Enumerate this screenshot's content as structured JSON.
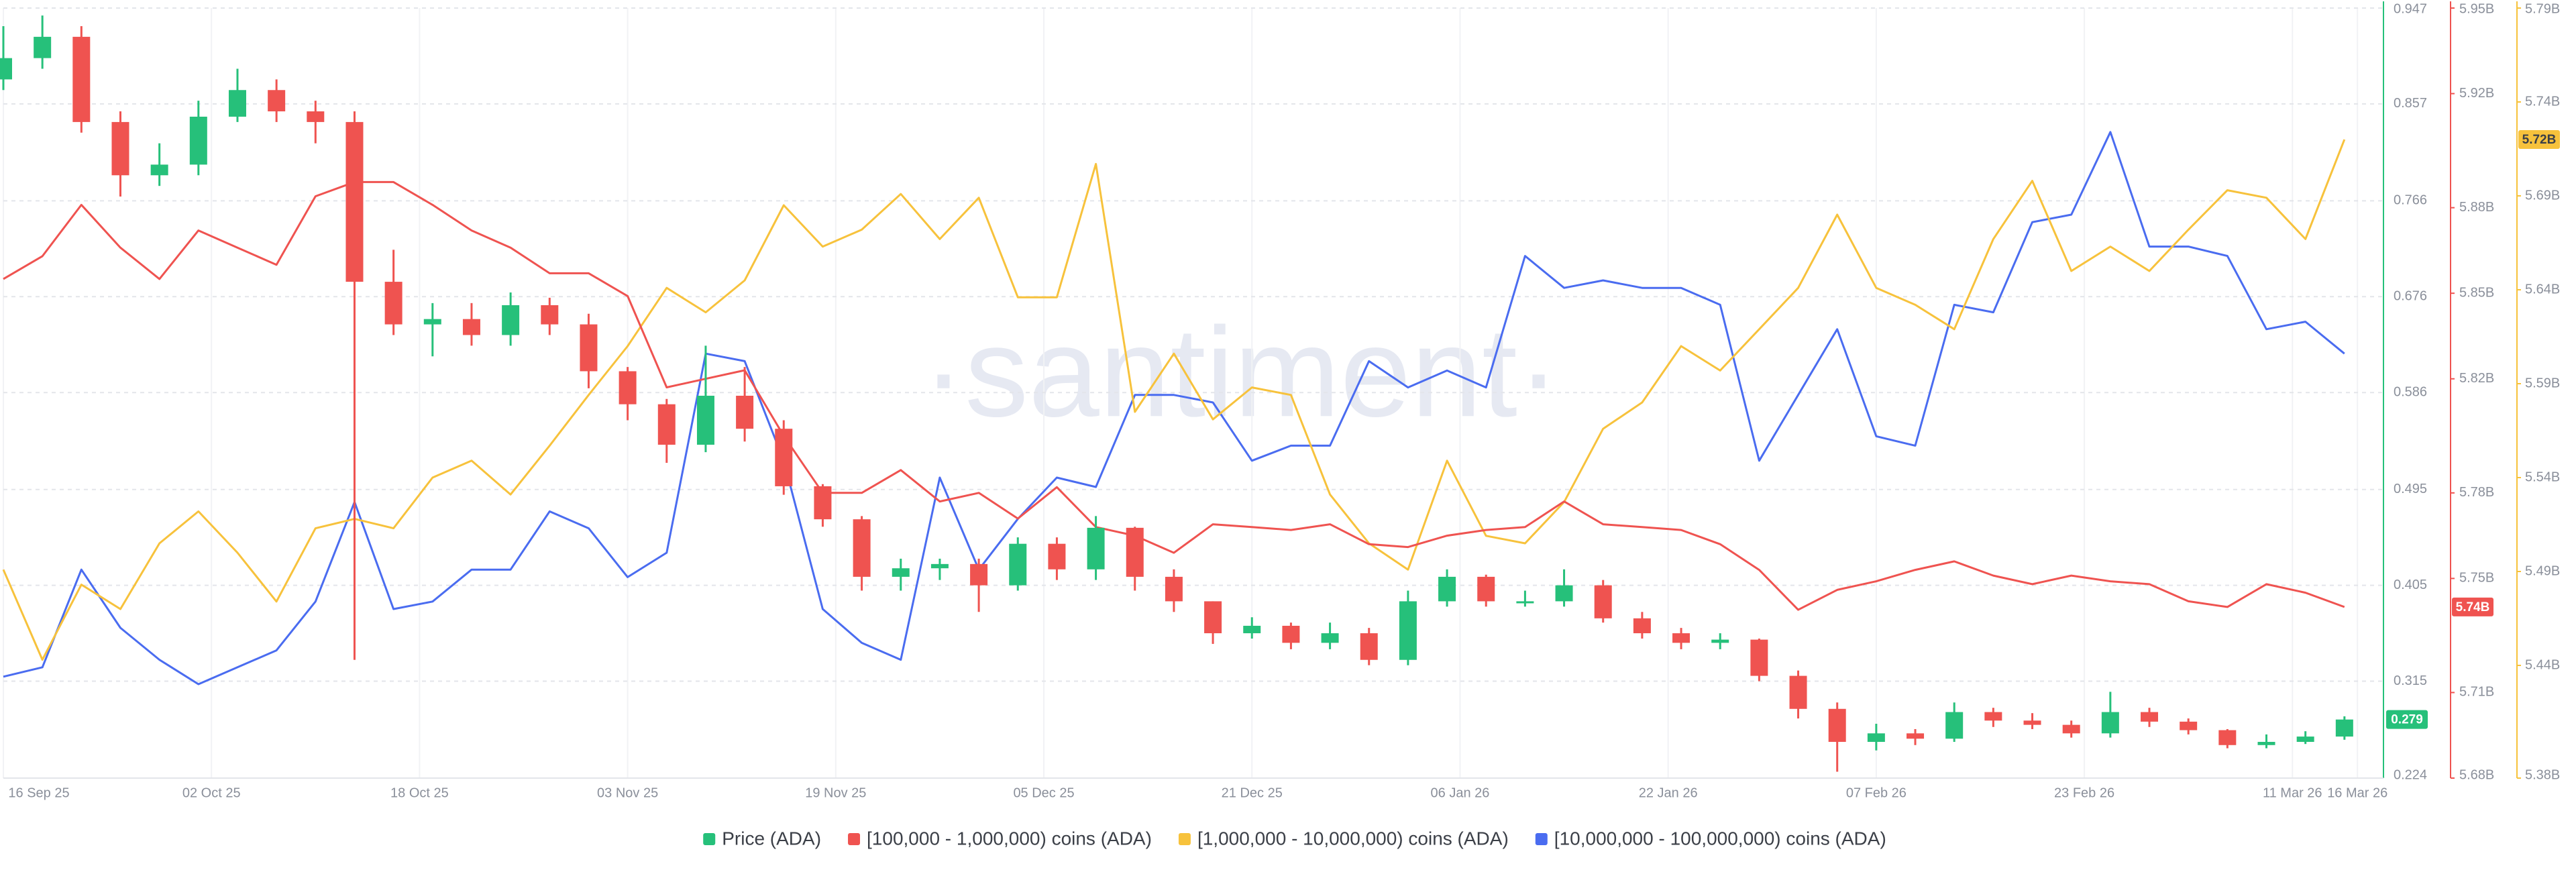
{
  "chart_data": {
    "type": "candlestick",
    "watermark": "·santiment·",
    "x": [
      "2025-09-16",
      "2025-09-19",
      "2025-09-22",
      "2025-09-25",
      "2025-09-28",
      "2025-10-01",
      "2025-10-04",
      "2025-10-07",
      "2025-10-10",
      "2025-10-13",
      "2025-10-16",
      "2025-10-19",
      "2025-10-22",
      "2025-10-25",
      "2025-10-28",
      "2025-10-31",
      "2025-11-03",
      "2025-11-06",
      "2025-11-09",
      "2025-11-12",
      "2025-11-15",
      "2025-11-18",
      "2025-11-21",
      "2025-11-24",
      "2025-11-27",
      "2025-11-30",
      "2025-12-03",
      "2025-12-06",
      "2025-12-09",
      "2025-12-12",
      "2025-12-15",
      "2025-12-18",
      "2025-12-21",
      "2025-12-24",
      "2025-12-27",
      "2025-12-30",
      "2026-01-02",
      "2026-01-05",
      "2026-01-08",
      "2026-01-11",
      "2026-01-14",
      "2026-01-17",
      "2026-01-20",
      "2026-01-23",
      "2026-01-26",
      "2026-01-29",
      "2026-02-01",
      "2026-02-04",
      "2026-02-07",
      "2026-02-10",
      "2026-02-13",
      "2026-02-16",
      "2026-02-19",
      "2026-02-22",
      "2026-02-25",
      "2026-02-28",
      "2026-03-03",
      "2026-03-06",
      "2026-03-09",
      "2026-03-12",
      "2026-03-15"
    ],
    "xlim": [
      "2025-09-16",
      "2026-03-18"
    ],
    "xticks": [
      {
        "value": "2025-09-16",
        "label": "16 Sep 25"
      },
      {
        "value": "2025-10-02",
        "label": "02 Oct 25"
      },
      {
        "value": "2025-10-18",
        "label": "18 Oct 25"
      },
      {
        "value": "2025-11-03",
        "label": "03 Nov 25"
      },
      {
        "value": "2025-11-19",
        "label": "19 Nov 25"
      },
      {
        "value": "2025-12-05",
        "label": "05 Dec 25"
      },
      {
        "value": "2025-12-21",
        "label": "21 Dec 25"
      },
      {
        "value": "2026-01-06",
        "label": "06 Jan 26"
      },
      {
        "value": "2026-01-22",
        "label": "22 Jan 26"
      },
      {
        "value": "2026-02-07",
        "label": "07 Feb 26"
      },
      {
        "value": "2026-02-23",
        "label": "23 Feb 26"
      },
      {
        "value": "2026-03-11",
        "label": "11 Mar 26"
      },
      {
        "value": "2026-03-16",
        "label": "16 Mar 26"
      }
    ],
    "ylim": [
      0.224,
      0.947
    ],
    "yticks": [
      0.224,
      0.315,
      0.405,
      0.495,
      0.586,
      0.676,
      0.766,
      0.857,
      0.947
    ],
    "y2lim": [
      5680000000.0,
      5950000000.0
    ],
    "y2ticks": [
      {
        "value": 5680000000.0,
        "label": "5.68B"
      },
      {
        "value": 5710000000.0,
        "label": "5.71B"
      },
      {
        "value": 5750000000.0,
        "label": "5.75B"
      },
      {
        "value": 5780000000.0,
        "label": "5.78B"
      },
      {
        "value": 5820000000.0,
        "label": "5.82B"
      },
      {
        "value": 5850000000.0,
        "label": "5.85B"
      },
      {
        "value": 5880000000.0,
        "label": "5.88B"
      },
      {
        "value": 5920000000.0,
        "label": "5.92B"
      },
      {
        "value": 5950000000.0,
        "label": "5.95B"
      }
    ],
    "y3lim": [
      5380000000.0,
      5790000000.0
    ],
    "y3ticks": [
      {
        "value": 5380000000.0,
        "label": "5.38B"
      },
      {
        "value": 5440000000.0,
        "label": "5.44B"
      },
      {
        "value": 5490000000.0,
        "label": "5.49B"
      },
      {
        "value": 5540000000.0,
        "label": "5.54B"
      },
      {
        "value": 5590000000.0,
        "label": "5.59B"
      },
      {
        "value": 5640000000.0,
        "label": "5.64B"
      },
      {
        "value": 5690000000.0,
        "label": "5.69B"
      },
      {
        "value": 5740000000.0,
        "label": "5.74B"
      },
      {
        "value": 5790000000.0,
        "label": "5.79B"
      }
    ],
    "grid": true,
    "series": [
      {
        "name": "Price (ADA)",
        "type": "candlestick",
        "axis": "y",
        "color": "#26c07a",
        "down_color": "#ef5350",
        "last_label": "0.279",
        "open": [
          0.88,
          0.9,
          0.92,
          0.84,
          0.79,
          0.8,
          0.845,
          0.87,
          0.85,
          0.84,
          0.69,
          0.65,
          0.655,
          0.64,
          0.668,
          0.65,
          0.606,
          0.575,
          0.537,
          0.583,
          0.552,
          0.498,
          0.467,
          0.413,
          0.421,
          0.425,
          0.405,
          0.444,
          0.42,
          0.459,
          0.413,
          0.39,
          0.36,
          0.367,
          0.351,
          0.36,
          0.335,
          0.39,
          0.413,
          0.39,
          0.39,
          0.405,
          0.374,
          0.36,
          0.351,
          0.354,
          0.32,
          0.289,
          0.258,
          0.266,
          0.261,
          0.286,
          0.278,
          0.274,
          0.266,
          0.286,
          0.277,
          0.269,
          0.255,
          0.258,
          0.263
        ],
        "high": [
          0.93,
          0.94,
          0.93,
          0.85,
          0.82,
          0.86,
          0.89,
          0.88,
          0.86,
          0.85,
          0.72,
          0.67,
          0.67,
          0.68,
          0.675,
          0.66,
          0.61,
          0.58,
          0.63,
          0.61,
          0.56,
          0.5,
          0.47,
          0.43,
          0.43,
          0.43,
          0.45,
          0.45,
          0.47,
          0.46,
          0.42,
          0.39,
          0.375,
          0.37,
          0.37,
          0.365,
          0.4,
          0.42,
          0.415,
          0.4,
          0.42,
          0.41,
          0.38,
          0.365,
          0.36,
          0.355,
          0.325,
          0.295,
          0.275,
          0.27,
          0.295,
          0.29,
          0.285,
          0.278,
          0.305,
          0.29,
          0.28,
          0.27,
          0.265,
          0.268,
          0.282
        ],
        "low": [
          0.87,
          0.89,
          0.83,
          0.77,
          0.78,
          0.79,
          0.84,
          0.84,
          0.82,
          0.335,
          0.64,
          0.62,
          0.63,
          0.63,
          0.64,
          0.59,
          0.56,
          0.52,
          0.53,
          0.54,
          0.49,
          0.46,
          0.4,
          0.4,
          0.41,
          0.38,
          0.4,
          0.41,
          0.41,
          0.4,
          0.38,
          0.35,
          0.355,
          0.345,
          0.345,
          0.33,
          0.33,
          0.385,
          0.385,
          0.385,
          0.385,
          0.37,
          0.355,
          0.345,
          0.345,
          0.315,
          0.28,
          0.23,
          0.25,
          0.255,
          0.258,
          0.272,
          0.27,
          0.262,
          0.262,
          0.272,
          0.265,
          0.252,
          0.252,
          0.256,
          0.26
        ],
        "close": [
          0.9,
          0.92,
          0.84,
          0.79,
          0.8,
          0.845,
          0.87,
          0.85,
          0.84,
          0.69,
          0.65,
          0.655,
          0.64,
          0.668,
          0.65,
          0.606,
          0.575,
          0.537,
          0.583,
          0.552,
          0.498,
          0.467,
          0.413,
          0.421,
          0.425,
          0.405,
          0.444,
          0.42,
          0.459,
          0.413,
          0.39,
          0.36,
          0.367,
          0.351,
          0.36,
          0.335,
          0.39,
          0.413,
          0.39,
          0.39,
          0.405,
          0.374,
          0.36,
          0.351,
          0.354,
          0.32,
          0.289,
          0.258,
          0.266,
          0.261,
          0.286,
          0.278,
          0.274,
          0.266,
          0.286,
          0.277,
          0.269,
          0.255,
          0.258,
          0.263,
          0.279
        ]
      },
      {
        "name": "[100,000  - 1,000,000) coins (ADA)",
        "type": "line",
        "axis": "y2",
        "color": "#ef5350",
        "last_label": "5.74B",
        "values": [
          5855000000.0,
          5863000000.0,
          5881000000.0,
          5866000000.0,
          5855000000.0,
          5872000000.0,
          5866000000.0,
          5860000000.0,
          5884000000.0,
          5889000000.0,
          5889000000.0,
          5881000000.0,
          5872000000.0,
          5866000000.0,
          5857000000.0,
          5857000000.0,
          5849000000.0,
          5817000000.0,
          5820000000.0,
          5823000000.0,
          5800000000.0,
          5780000000.0,
          5780000000.0,
          5788000000.0,
          5777000000.0,
          5780000000.0,
          5771000000.0,
          5782000000.0,
          5768000000.0,
          5765000000.0,
          5759000000.0,
          5769000000.0,
          5768000000.0,
          5767000000.0,
          5769000000.0,
          5762000000.0,
          5761000000.0,
          5765000000.0,
          5767000000.0,
          5768000000.0,
          5777000000.0,
          5769000000.0,
          5768000000.0,
          5767000000.0,
          5762000000.0,
          5753000000.0,
          5739000000.0,
          5746000000.0,
          5749000000.0,
          5753000000.0,
          5756000000.0,
          5751000000.0,
          5748000000.0,
          5751000000.0,
          5749000000.0,
          5748000000.0,
          5742000000.0,
          5740000000.0,
          5748000000.0,
          5745000000.0,
          5740000000.0
        ]
      },
      {
        "name": "[1,000,000 - 10,000,000) coins (ADA)",
        "type": "line",
        "axis": "y3",
        "color": "#f7c23c",
        "last_label": "5.72B",
        "values": [
          5491000000.0,
          5443000000.0,
          5483000000.0,
          5470000000.0,
          5505000000.0,
          5522000000.0,
          5500000000.0,
          5474000000.0,
          5513000000.0,
          5518000000.0,
          5513000000.0,
          5540000000.0,
          5549000000.0,
          5531000000.0,
          5557000000.0,
          5584000000.0,
          5610000000.0,
          5641000000.0,
          5628000000.0,
          5645000000.0,
          5685000000.0,
          5663000000.0,
          5672000000.0,
          5691000000.0,
          5667000000.0,
          5689000000.0,
          5636000000.0,
          5636000000.0,
          5707000000.0,
          5575000000.0,
          5606000000.0,
          5571000000.0,
          5588000000.0,
          5584000000.0,
          5531000000.0,
          5505000000.0,
          5491000000.0,
          5549000000.0,
          5509000000.0,
          5505000000.0,
          5527000000.0,
          5566000000.0,
          5580000000.0,
          5610000000.0,
          5597000000.0,
          5619000000.0,
          5641000000.0,
          5680000000.0,
          5641000000.0,
          5632000000.0,
          5619000000.0,
          5667000000.0,
          5698000000.0,
          5650000000.0,
          5663000000.0,
          5650000000.0,
          5672000000.0,
          5693000000.0,
          5689000000.0,
          5667000000.0,
          5720000000.0
        ]
      },
      {
        "name": "[10,000,000 - 100,000,000) coins (ADA)",
        "type": "line",
        "axis": "y3",
        "color": "#4a6cf0",
        "values": [
          5434000000.0,
          5439000000.0,
          5491000000.0,
          5460000000.0,
          5443000000.0,
          5430000000.0,
          5439000000.0,
          5448000000.0,
          5474000000.0,
          5527000000.0,
          5470000000.0,
          5474000000.0,
          5491000000.0,
          5491000000.0,
          5522000000.0,
          5513000000.0,
          5487000000.0,
          5500000000.0,
          5606000000.0,
          5602000000.0,
          5549000000.0,
          5470000000.0,
          5452000000.0,
          5443000000.0,
          5540000000.0,
          5491000000.0,
          5518000000.0,
          5540000000.0,
          5535000000.0,
          5584000000.0,
          5584000000.0,
          5580000000.0,
          5549000000.0,
          5557000000.0,
          5557000000.0,
          5602000000.0,
          5588000000.0,
          5597000000.0,
          5588000000.0,
          5658000000.0,
          5641000000.0,
          5645000000.0,
          5641000000.0,
          5641000000.0,
          5632000000.0,
          5549000000.0,
          5584000000.0,
          5619000000.0,
          5562000000.0,
          5557000000.0,
          5632000000.0,
          5628000000.0,
          5676000000.0,
          5680000000.0,
          5724000000.0,
          5663000000.0,
          5663000000.0,
          5658000000.0,
          5619000000.0,
          5623000000.0,
          5606000000.0
        ]
      }
    ]
  }
}
